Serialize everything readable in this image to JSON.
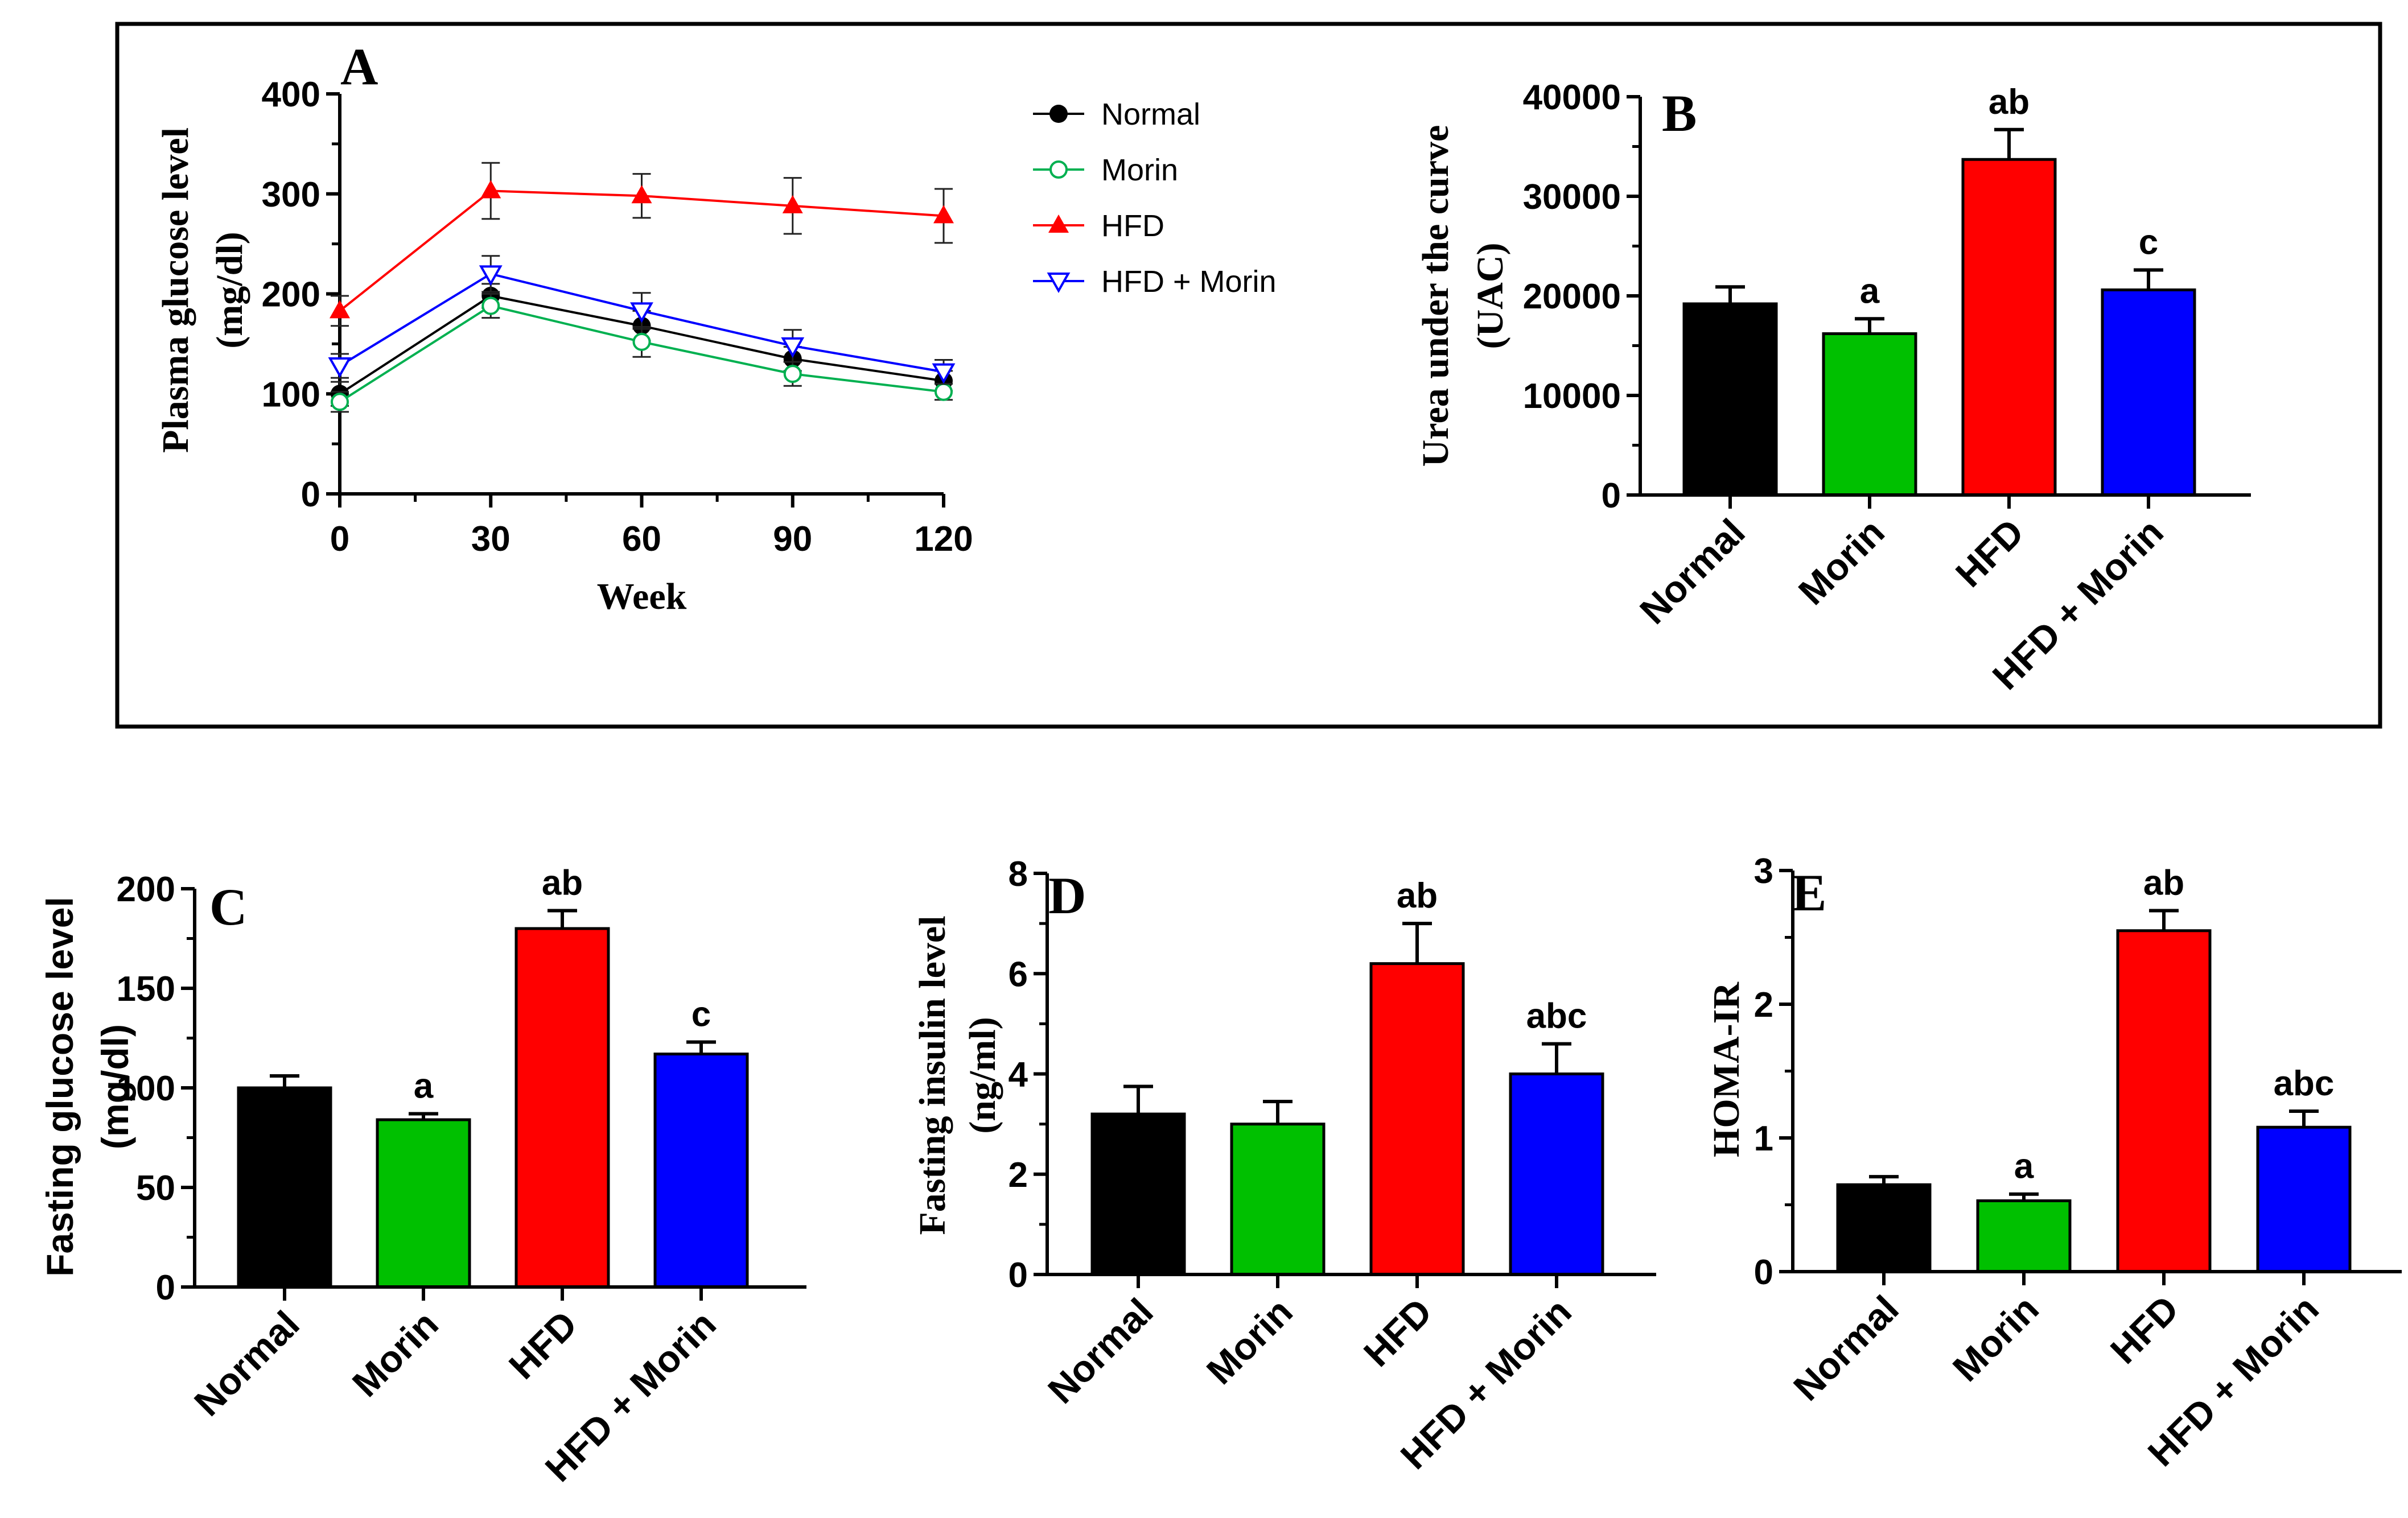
{
  "chart_data": [
    {
      "panel": "A",
      "type": "line",
      "xlabel": "Week",
      "ylabel_lines": [
        "Plasma glucose level",
        "(mg/dl)"
      ],
      "x": [
        0,
        30,
        60,
        90,
        120
      ],
      "xlim": [
        0,
        120
      ],
      "ylim": [
        0,
        400
      ],
      "xticks": [
        0,
        30,
        60,
        90,
        120
      ],
      "yticks": [
        0,
        100,
        200,
        300,
        400
      ],
      "legend_position": "right",
      "series": [
        {
          "name": "Normal",
          "color": "#000000",
          "marker": "filled-circle",
          "values": [
            100,
            198,
            168,
            135,
            113
          ],
          "errors": [
            12,
            12,
            15,
            12,
            10
          ]
        },
        {
          "name": "Morin",
          "color": "#00b050",
          "marker": "open-circle",
          "values": [
            92,
            188,
            152,
            120,
            102
          ],
          "errors": [
            10,
            12,
            15,
            12,
            8
          ]
        },
        {
          "name": "HFD",
          "color": "#ff0000",
          "marker": "filled-triangle",
          "values": [
            183,
            303,
            298,
            288,
            278
          ],
          "errors": [
            15,
            28,
            22,
            28,
            27
          ]
        },
        {
          "name": "HFD + Morin",
          "color": "#0000ff",
          "marker": "open-triangle-down",
          "values": [
            128,
            220,
            183,
            148,
            122
          ],
          "errors": [
            12,
            18,
            18,
            16,
            12
          ]
        }
      ]
    },
    {
      "panel": "B",
      "type": "bar",
      "ylabel_lines": [
        "Urea under the curve",
        "(UAC)"
      ],
      "categories": [
        "Normal",
        "Morin",
        "HFD",
        "HFD + Morin"
      ],
      "values": [
        19200,
        16200,
        33700,
        20600
      ],
      "errors": [
        1700,
        1500,
        3000,
        2000
      ],
      "significance": [
        "",
        "a",
        "ab",
        "c"
      ],
      "colors": [
        "#000000",
        "#00c000",
        "#ff0000",
        "#0000ff"
      ],
      "ylim": [
        0,
        40000
      ],
      "yticks": [
        0,
        10000,
        20000,
        30000,
        40000
      ]
    },
    {
      "panel": "C",
      "type": "bar",
      "ylabel_lines": [
        "Fasting glucose level",
        "(mg/dl)"
      ],
      "categories": [
        "Normal",
        "Morin",
        "HFD",
        "HFD + Morin"
      ],
      "values": [
        100,
        84,
        180,
        117
      ],
      "errors": [
        6,
        3,
        9,
        6
      ],
      "significance": [
        "",
        "a",
        "ab",
        "c"
      ],
      "colors": [
        "#000000",
        "#00c000",
        "#ff0000",
        "#0000ff"
      ],
      "ylim": [
        0,
        200
      ],
      "yticks": [
        0,
        50,
        100,
        150,
        200
      ]
    },
    {
      "panel": "D",
      "type": "bar",
      "ylabel_lines": [
        "Fasting insulin level",
        "(ng/ml)"
      ],
      "categories": [
        "Normal",
        "Morin",
        "HFD",
        "HFD + Morin"
      ],
      "values": [
        3.2,
        3.0,
        6.2,
        4.0
      ],
      "errors": [
        0.55,
        0.45,
        0.8,
        0.6
      ],
      "significance": [
        "",
        "",
        "ab",
        "abc"
      ],
      "colors": [
        "#000000",
        "#00c000",
        "#ff0000",
        "#0000ff"
      ],
      "ylim": [
        0,
        8
      ],
      "yticks": [
        0,
        2,
        4,
        6,
        8
      ]
    },
    {
      "panel": "E",
      "type": "bar",
      "ylabel_lines": [
        "HOMA-IR"
      ],
      "categories": [
        "Normal",
        "Morin",
        "HFD",
        "HFD + Morin"
      ],
      "values": [
        0.65,
        0.53,
        2.55,
        1.08
      ],
      "errors": [
        0.06,
        0.05,
        0.15,
        0.12
      ],
      "significance": [
        "",
        "a",
        "ab",
        "abc"
      ],
      "colors": [
        "#000000",
        "#00c000",
        "#ff0000",
        "#0000ff"
      ],
      "ylim": [
        0,
        3
      ],
      "yticks": [
        0,
        1,
        2,
        3
      ]
    }
  ]
}
